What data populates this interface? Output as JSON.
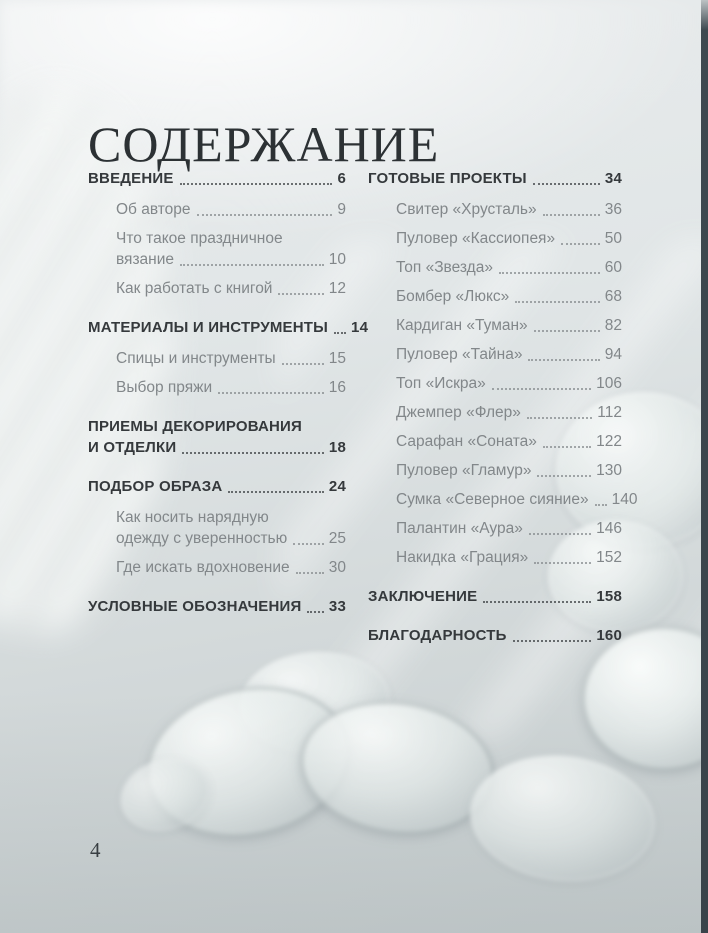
{
  "page": {
    "title": "СОДЕРЖАНИЕ",
    "page_number": "4"
  },
  "colors": {
    "background_top": "#e9eced",
    "background_bottom": "#c6cdce",
    "title_text": "#2c3134",
    "heading_text": "#35393c",
    "item_text": "#82878a",
    "edge_bar": "#3e4950"
  },
  "toc": {
    "left": [
      {
        "heading": {
          "lines": [
            "ВВЕДЕНИЕ"
          ],
          "page": "6"
        },
        "items": [
          {
            "lines": [
              "Об авторе"
            ],
            "page": "9"
          },
          {
            "lines": [
              "Что такое праздничное",
              "вязание"
            ],
            "page": "10"
          },
          {
            "lines": [
              "Как работать с книгой"
            ],
            "page": "12"
          }
        ]
      },
      {
        "heading": {
          "lines": [
            "МАТЕРИАЛЫ И ИНСТРУМЕНТЫ"
          ],
          "page": "14"
        },
        "items": [
          {
            "lines": [
              "Спицы и инструменты"
            ],
            "page": "15"
          },
          {
            "lines": [
              "Выбор пряжи"
            ],
            "page": "16"
          }
        ]
      },
      {
        "heading": {
          "lines": [
            "ПРИЕМЫ ДЕКОРИРОВАНИЯ",
            "И ОТДЕЛКИ"
          ],
          "page": "18"
        },
        "items": []
      },
      {
        "heading": {
          "lines": [
            "ПОДБОР ОБРАЗА"
          ],
          "page": "24"
        },
        "items": [
          {
            "lines": [
              "Как носить нарядную",
              "одежду с уверенностью"
            ],
            "page": "25"
          },
          {
            "lines": [
              "Где искать вдохновение"
            ],
            "page": "30"
          }
        ]
      },
      {
        "heading": {
          "lines": [
            "УСЛОВНЫЕ ОБОЗНАЧЕНИЯ"
          ],
          "page": "33"
        },
        "items": []
      }
    ],
    "right": [
      {
        "heading": {
          "lines": [
            "ГОТОВЫЕ ПРОЕКТЫ"
          ],
          "page": "34"
        },
        "items": [
          {
            "lines": [
              "Свитер «Хрусталь»"
            ],
            "page": "36"
          },
          {
            "lines": [
              "Пуловер «Кассиопея»"
            ],
            "page": "50"
          },
          {
            "lines": [
              "Топ «Звезда»"
            ],
            "page": "60"
          },
          {
            "lines": [
              "Бомбер «Люкс»"
            ],
            "page": "68"
          },
          {
            "lines": [
              "Кардиган «Туман»"
            ],
            "page": "82"
          },
          {
            "lines": [
              "Пуловер «Тайна»"
            ],
            "page": "94"
          },
          {
            "lines": [
              "Топ «Искра»"
            ],
            "page": "106"
          },
          {
            "lines": [
              "Джемпер «Флер»"
            ],
            "page": "112"
          },
          {
            "lines": [
              "Сарафан «Соната»"
            ],
            "page": "122"
          },
          {
            "lines": [
              "Пуловер «Гламур»"
            ],
            "page": "130"
          },
          {
            "lines": [
              "Сумка «Северное сияние»"
            ],
            "page": "140"
          },
          {
            "lines": [
              "Палантин «Аура»"
            ],
            "page": "146"
          },
          {
            "lines": [
              "Накидка «Грация»"
            ],
            "page": "152"
          }
        ]
      },
      {
        "heading": {
          "lines": [
            "ЗАКЛЮЧЕНИЕ"
          ],
          "page": "158"
        },
        "items": []
      },
      {
        "heading": {
          "lines": [
            "БЛАГОДАРНОСТЬ"
          ],
          "page": "160"
        },
        "items": []
      }
    ]
  }
}
